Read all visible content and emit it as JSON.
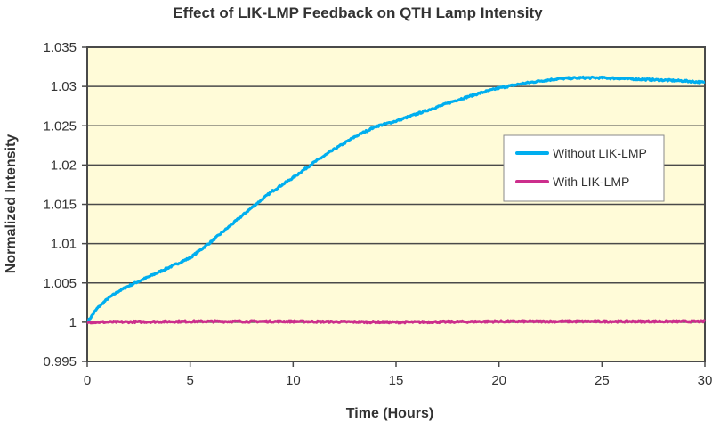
{
  "chart_data": {
    "type": "line",
    "title": "Effect of LIK-LMP Feedback on QTH Lamp Intensity",
    "xlabel": "Time (Hours)",
    "ylabel": "Normalized Intensity",
    "xlim": [
      0,
      30
    ],
    "ylim": [
      0.995,
      1.035
    ],
    "xticks": [
      0,
      5,
      10,
      15,
      20,
      25,
      30
    ],
    "xtick_labels": [
      "0",
      "5",
      "10",
      "15",
      "20",
      "25",
      "30"
    ],
    "yticks": [
      0.995,
      1.0,
      1.005,
      1.01,
      1.015,
      1.02,
      1.025,
      1.03,
      1.035
    ],
    "ytick_labels": [
      "0.995",
      "1",
      "1.005",
      "1.01",
      "1.015",
      "1.02",
      "1.025",
      "1.03",
      "1.035"
    ],
    "grid": "horizontal",
    "plot_background": "#FFFBD8",
    "legend": {
      "position": "center-right",
      "entries": [
        "Without LIK-LMP",
        "With LIK-LMP"
      ]
    },
    "series": [
      {
        "name": "Without LIK-LMP",
        "color": "#00AEEF",
        "x": [
          0,
          0.5,
          1,
          1.5,
          2,
          2.5,
          3,
          3.5,
          4,
          4.5,
          5,
          6,
          7,
          8,
          9,
          10,
          11,
          12,
          13,
          14,
          15,
          16,
          17,
          18,
          19,
          20,
          21,
          22,
          23,
          24,
          25,
          26,
          27,
          28,
          29,
          30
        ],
        "values": [
          1.0,
          1.0018,
          1.003,
          1.0039,
          1.0046,
          1.0052,
          1.0058,
          1.0064,
          1.007,
          1.0076,
          1.0082,
          1.0102,
          1.0124,
          1.0146,
          1.0167,
          1.0184,
          1.0203,
          1.022,
          1.0236,
          1.0249,
          1.0256,
          1.0265,
          1.0274,
          1.0283,
          1.0291,
          1.0298,
          1.0303,
          1.0307,
          1.031,
          1.0311,
          1.0311,
          1.031,
          1.0309,
          1.0308,
          1.0307,
          1.0305
        ]
      },
      {
        "name": "With LIK-LMP",
        "color": "#CC2E8C",
        "x": [
          0,
          5,
          10,
          15,
          20,
          25,
          30
        ],
        "values": [
          1.0,
          1.0001,
          1.0001,
          1.0,
          1.0001,
          1.0001,
          1.0001
        ]
      }
    ]
  }
}
